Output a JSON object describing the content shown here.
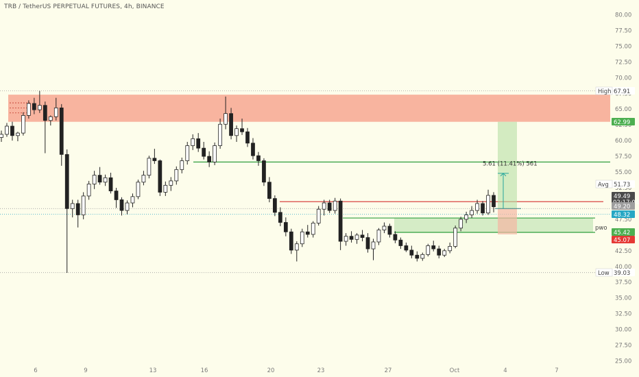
{
  "header": {
    "title": "TRB / TetherUS PERPETUAL FUTURES, 4h, BINANCE"
  },
  "chart_data": {
    "type": "candlestick",
    "title": "TRB / TetherUS PERPETUAL FUTURES, 4h, BINANCE",
    "ylim": [
      25,
      80
    ],
    "y_ticks": [
      "80.00",
      "77.50",
      "75.00",
      "72.50",
      "70.00",
      "67.50",
      "65.00",
      "62.50",
      "60.00",
      "57.50",
      "55.00",
      "52.50",
      "50.00",
      "47.50",
      "45.00",
      "42.50",
      "40.00",
      "37.50",
      "35.00",
      "32.50",
      "30.00",
      "27.50",
      "25.00"
    ],
    "x_ticks": [
      "6",
      "9",
      "13",
      "16",
      "20",
      "23",
      "27",
      "Oct",
      "4",
      "7"
    ],
    "price_labels": [
      {
        "label": "High",
        "value": "67.91",
        "color": "#ffffff",
        "text_color": "#444444"
      },
      {
        "label": "",
        "value": "62.99",
        "color": "#4caf50",
        "text_color": "#ffffff"
      },
      {
        "label": "Avg",
        "value": "51.73",
        "color": "#ffffff",
        "text_color": "#444444"
      },
      {
        "label": "",
        "value": "49.49",
        "extra": "02:17:04",
        "color": "#4a4a4a",
        "text_color": "#ffffff"
      },
      {
        "label": "",
        "value": "49.20",
        "color": "#9e9e9e",
        "text_color": "#ffffff"
      },
      {
        "label": "",
        "value": "48.32",
        "color": "#26a7c4",
        "text_color": "#ffffff"
      },
      {
        "label": "pwo",
        "value": "45.42",
        "color": "#4caf50",
        "text_color": "#ffffff"
      },
      {
        "label": "",
        "value": "45.07",
        "color": "#e53935",
        "text_color": "#ffffff"
      },
      {
        "label": "Low",
        "value": "39.03",
        "color": "#ffffff",
        "text_color": "#444444"
      }
    ],
    "zones": [
      {
        "name": "supply-zone",
        "y_from": 62.99,
        "y_to": 67.3,
        "color": "#f7a792"
      }
    ],
    "levels": [
      {
        "name": "green-level-top",
        "y": 56.6,
        "color": "#2e9e3c"
      },
      {
        "name": "red-level",
        "y": 50.3,
        "color": "#d32f2f"
      },
      {
        "name": "green-level-mid",
        "y": 47.7,
        "color": "#2e9e3c"
      },
      {
        "name": "green-level-low",
        "y": 45.42,
        "color": "#2e9e3c"
      }
    ],
    "measurement": {
      "text": "5.61 (11.41%) 561",
      "from": 49.2,
      "to": 54.8
    },
    "candles": [
      [
        60.5,
        61.6,
        59.8,
        61.0
      ],
      [
        61.0,
        62.8,
        60.6,
        62.3
      ],
      [
        62.3,
        63.0,
        60.0,
        60.8
      ],
      [
        60.8,
        61.4,
        59.9,
        61.2
      ],
      [
        61.2,
        64.5,
        60.8,
        64.0
      ],
      [
        64.0,
        66.4,
        63.5,
        65.9
      ],
      [
        65.9,
        66.8,
        64.2,
        64.9
      ],
      [
        64.9,
        67.9,
        64.4,
        65.6
      ],
      [
        65.6,
        66.2,
        58.0,
        63.2
      ],
      [
        63.2,
        64.0,
        62.4,
        63.8
      ],
      [
        63.8,
        66.8,
        63.2,
        65.2
      ],
      [
        65.2,
        65.8,
        56.0,
        57.8
      ],
      [
        57.8,
        58.6,
        39.0,
        49.2
      ],
      [
        49.2,
        50.6,
        47.8,
        50.0
      ],
      [
        50.0,
        50.6,
        46.2,
        48.2
      ],
      [
        48.2,
        51.8,
        47.5,
        51.2
      ],
      [
        51.2,
        53.6,
        50.6,
        53.1
      ],
      [
        53.1,
        55.2,
        52.3,
        54.5
      ],
      [
        54.5,
        55.8,
        53.0,
        53.4
      ],
      [
        53.4,
        54.6,
        52.8,
        54.1
      ],
      [
        54.1,
        54.9,
        51.6,
        52.0
      ],
      [
        52.0,
        52.5,
        49.3,
        50.6
      ],
      [
        50.6,
        51.0,
        48.1,
        48.9
      ],
      [
        48.9,
        50.5,
        48.3,
        50.1
      ],
      [
        50.1,
        51.6,
        49.4,
        51.1
      ],
      [
        51.1,
        53.8,
        50.7,
        53.4
      ],
      [
        53.4,
        55.2,
        52.9,
        54.5
      ],
      [
        54.5,
        57.6,
        54.0,
        57.2
      ],
      [
        57.2,
        58.7,
        56.3,
        56.8
      ],
      [
        56.8,
        57.0,
        51.2,
        51.8
      ],
      [
        51.8,
        53.5,
        51.2,
        52.9
      ],
      [
        52.9,
        54.2,
        52.0,
        53.6
      ],
      [
        53.6,
        55.9,
        53.0,
        55.4
      ],
      [
        55.4,
        57.3,
        54.8,
        56.8
      ],
      [
        56.8,
        59.8,
        56.2,
        59.2
      ],
      [
        59.2,
        61.0,
        58.5,
        60.3
      ],
      [
        60.3,
        61.2,
        58.2,
        58.8
      ],
      [
        58.8,
        59.8,
        57.0,
        57.5
      ],
      [
        57.5,
        58.3,
        55.8,
        56.6
      ],
      [
        56.6,
        59.7,
        56.1,
        59.2
      ],
      [
        59.2,
        63.5,
        58.7,
        62.6
      ],
      [
        62.6,
        67.0,
        61.8,
        64.3
      ],
      [
        64.3,
        65.2,
        60.2,
        60.8
      ],
      [
        60.8,
        62.4,
        59.8,
        61.9
      ],
      [
        61.9,
        63.5,
        60.9,
        61.4
      ],
      [
        61.4,
        62.0,
        59.0,
        59.6
      ],
      [
        59.6,
        60.4,
        57.0,
        57.6
      ],
      [
        57.6,
        58.2,
        56.0,
        56.8
      ],
      [
        56.8,
        57.2,
        52.8,
        53.4
      ],
      [
        53.4,
        54.2,
        50.2,
        50.8
      ],
      [
        50.8,
        51.3,
        48.0,
        48.6
      ],
      [
        48.6,
        49.4,
        46.4,
        47.0
      ],
      [
        47.0,
        47.8,
        44.8,
        45.5
      ],
      [
        45.5,
        46.0,
        42.0,
        42.6
      ],
      [
        42.6,
        44.0,
        40.8,
        43.6
      ],
      [
        43.6,
        46.0,
        43.1,
        45.5
      ],
      [
        45.5,
        46.6,
        44.6,
        45.1
      ],
      [
        45.1,
        47.2,
        44.6,
        46.9
      ],
      [
        46.9,
        49.6,
        46.5,
        49.1
      ],
      [
        49.1,
        50.6,
        48.1,
        50.1
      ],
      [
        50.1,
        50.6,
        48.5,
        48.9
      ],
      [
        48.9,
        50.9,
        48.4,
        50.4
      ],
      [
        50.4,
        50.8,
        42.6,
        44.0
      ],
      [
        44.0,
        45.3,
        43.3,
        44.8
      ],
      [
        44.8,
        45.6,
        43.8,
        44.3
      ],
      [
        44.3,
        45.3,
        43.6,
        45.0
      ],
      [
        45.0,
        45.8,
        44.0,
        44.6
      ],
      [
        44.6,
        45.3,
        42.2,
        42.8
      ],
      [
        42.8,
        44.4,
        41.0,
        43.9
      ],
      [
        43.9,
        46.1,
        43.4,
        45.8
      ],
      [
        45.8,
        47.0,
        45.3,
        46.4
      ],
      [
        46.4,
        46.8,
        44.6,
        45.1
      ],
      [
        45.1,
        45.6,
        43.7,
        44.2
      ],
      [
        44.2,
        44.6,
        42.8,
        43.3
      ],
      [
        43.3,
        43.8,
        42.3,
        42.6
      ],
      [
        42.6,
        43.3,
        41.3,
        41.8
      ],
      [
        41.8,
        42.4,
        40.8,
        41.3
      ],
      [
        41.3,
        42.2,
        40.9,
        41.9
      ],
      [
        41.9,
        43.6,
        41.6,
        43.3
      ],
      [
        43.3,
        44.1,
        42.4,
        42.8
      ],
      [
        42.8,
        43.3,
        41.3,
        41.8
      ],
      [
        41.8,
        42.8,
        41.5,
        42.5
      ],
      [
        42.5,
        43.8,
        42.1,
        43.2
      ],
      [
        43.2,
        46.5,
        42.9,
        46.1
      ],
      [
        46.1,
        47.9,
        45.6,
        47.5
      ],
      [
        47.5,
        48.7,
        46.9,
        48.2
      ],
      [
        48.2,
        49.6,
        47.7,
        48.9
      ],
      [
        48.9,
        50.6,
        48.4,
        50.0
      ],
      [
        50.0,
        50.4,
        48.1,
        48.5
      ],
      [
        48.5,
        52.2,
        48.2,
        51.3
      ],
      [
        51.3,
        51.8,
        48.6,
        49.49
      ]
    ]
  }
}
